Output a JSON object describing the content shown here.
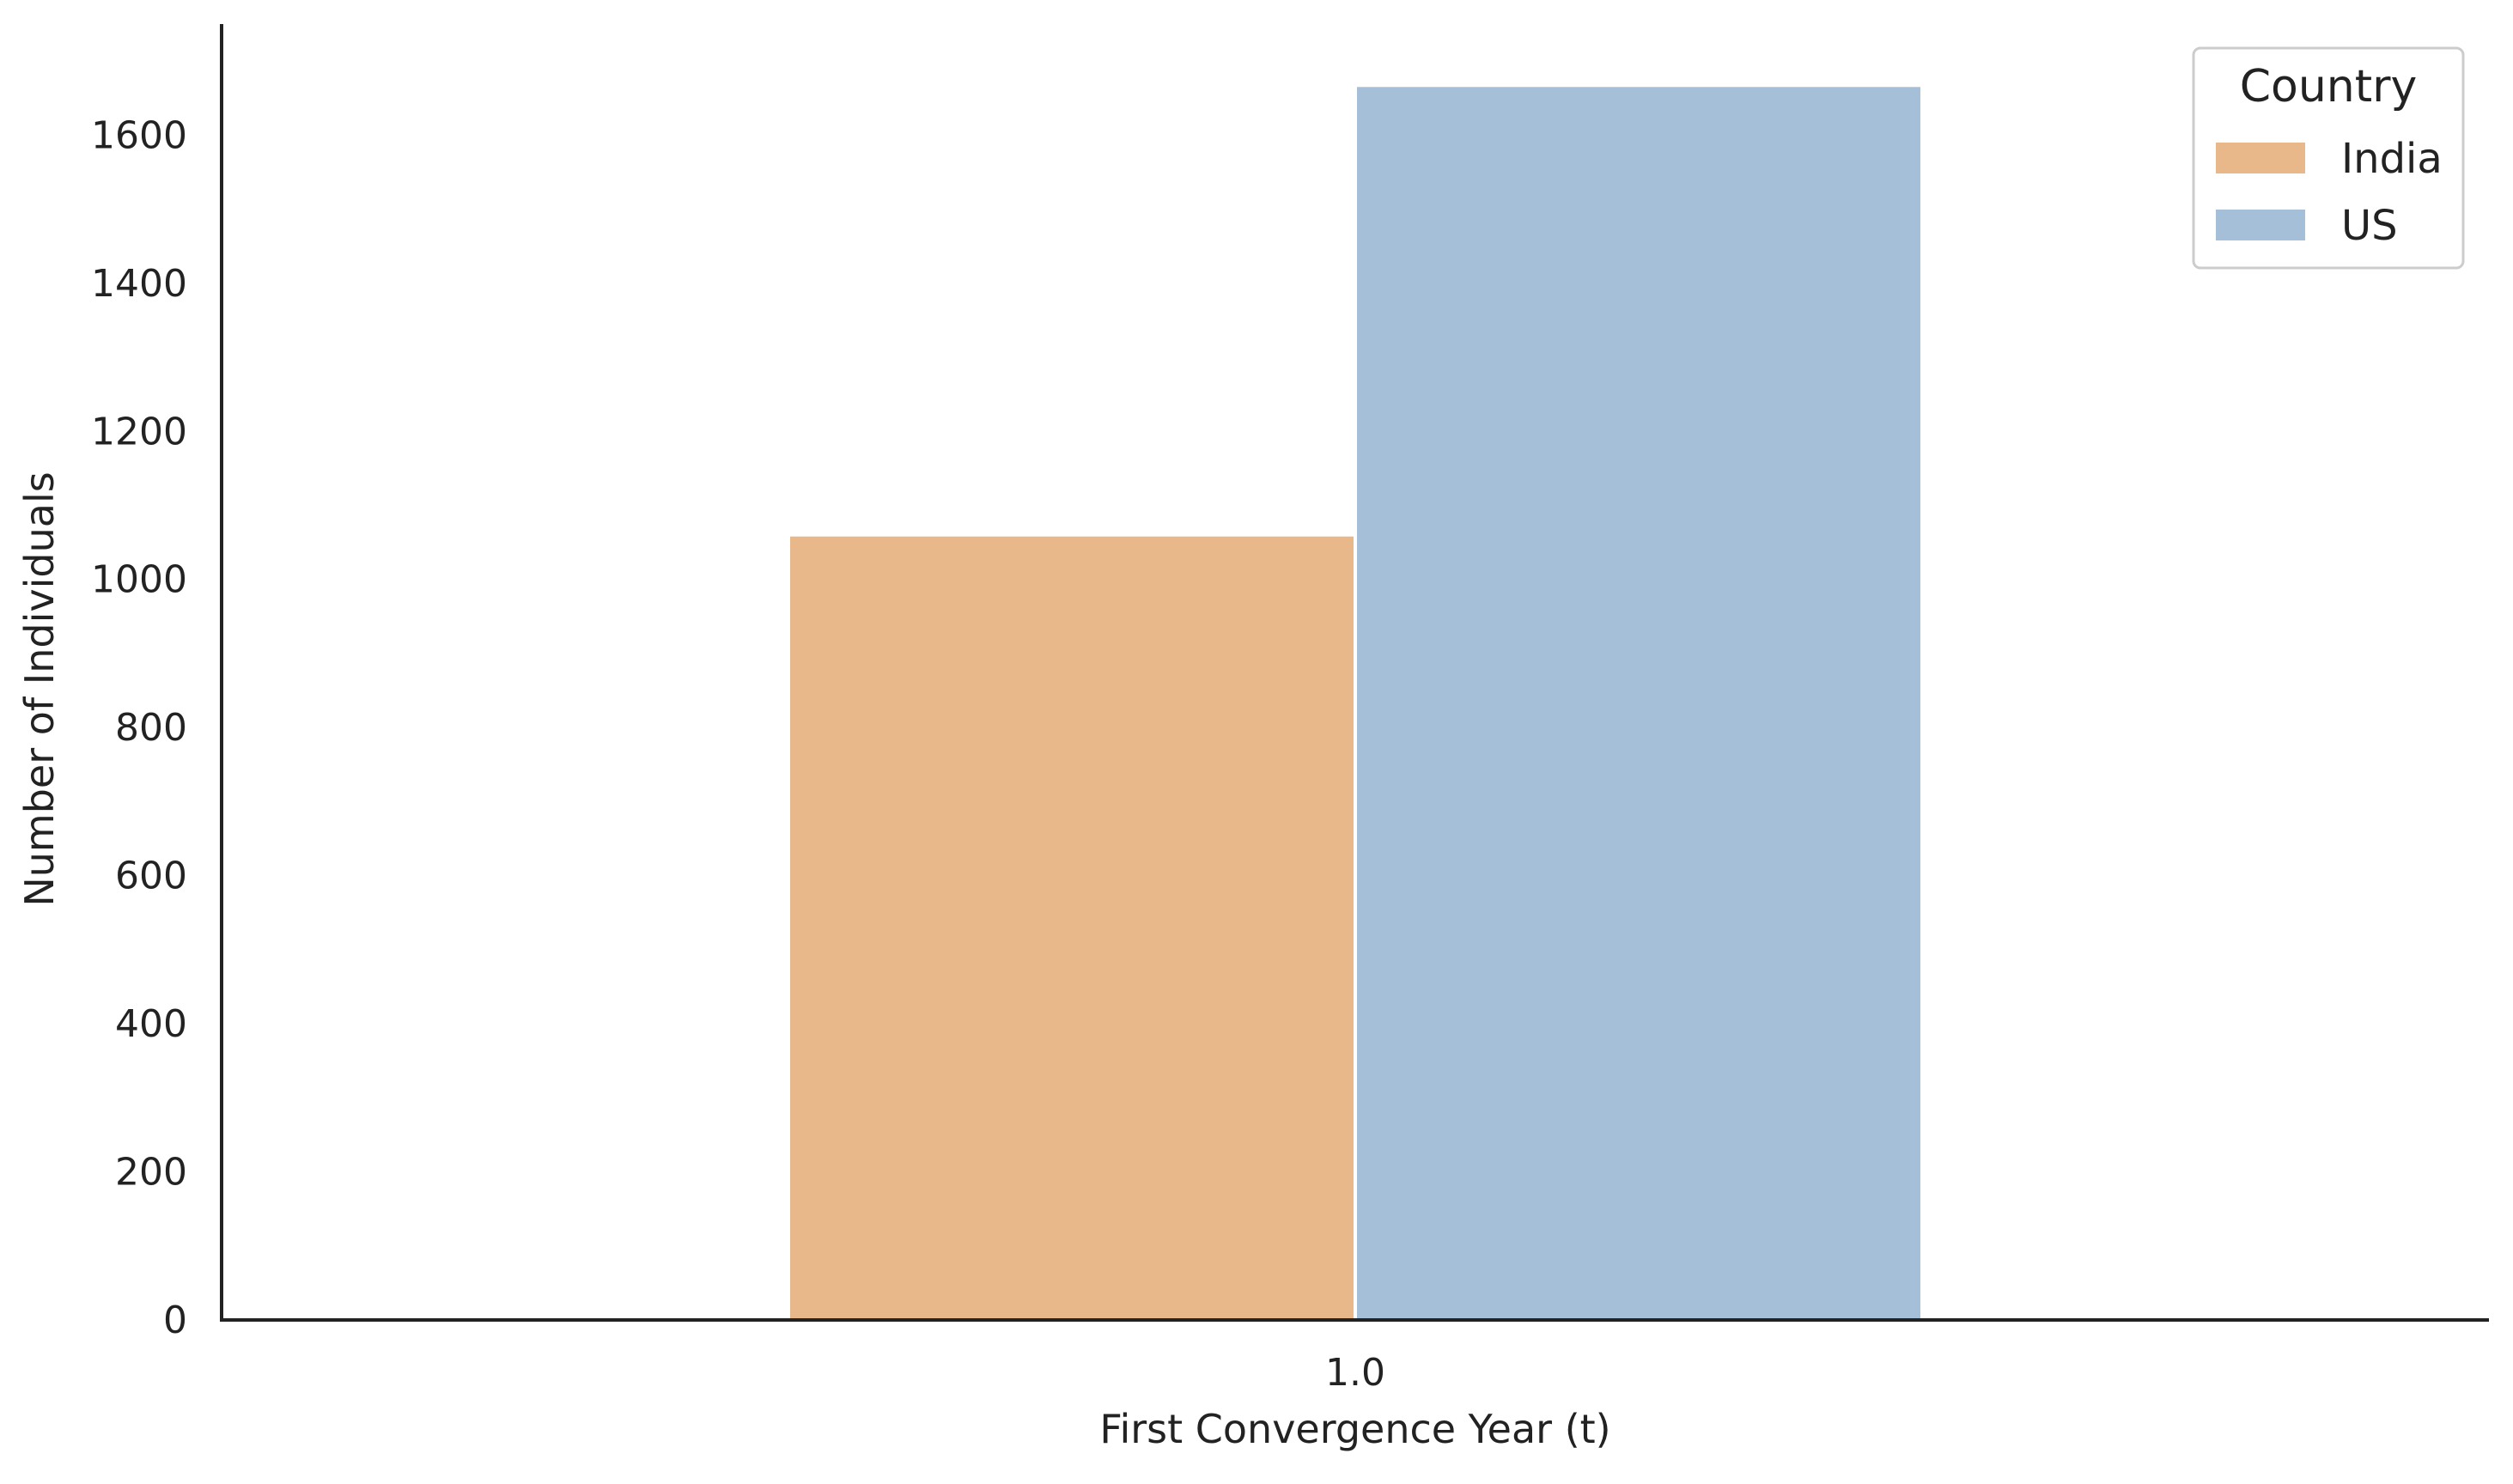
{
  "chart_data": {
    "type": "bar",
    "categories": [
      "1.0"
    ],
    "series": [
      {
        "name": "India",
        "values": [
          1058
        ],
        "color": "#e8b78a"
      },
      {
        "name": "US",
        "values": [
          1665
        ],
        "color": "#a5bfd9"
      }
    ],
    "xlabel": "First Convergence Year (t)",
    "ylabel": "Number of Individuals",
    "ylim": [
      0,
      1750
    ],
    "yticks": [
      0,
      200,
      400,
      600,
      800,
      1000,
      1200,
      1400,
      1600
    ],
    "grid": false,
    "legend": {
      "title": "Country",
      "placement": "top-right"
    }
  }
}
